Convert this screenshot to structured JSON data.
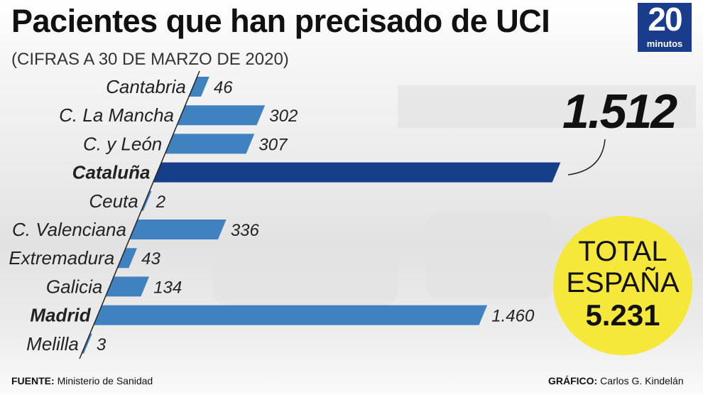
{
  "header": {
    "title": "Pacientes que han precisado de UCI",
    "subtitle": "(CIFRAS A 30 DE MARZO DE 2020)"
  },
  "logo": {
    "number": "20",
    "word": "minutos"
  },
  "highlight": {
    "value_text": "1.512"
  },
  "total": {
    "line1": "TOTAL",
    "line2": "ESPAÑA",
    "value_text": "5.231"
  },
  "footer": {
    "source_label": "FUENTE:",
    "source_text": "Ministerio de Sanidad",
    "credit_label": "GRÁFICO:",
    "credit_text": "Carlos G. Kindelán"
  },
  "colors": {
    "bar_default": "#3f82bf",
    "bar_highlight": "#163f8a",
    "total_circle": "#f5e83a",
    "logo_bg": "#1a3c8c"
  },
  "chart_data": {
    "type": "bar",
    "orientation": "horizontal",
    "title": "Pacientes que han precisado de UCI",
    "subtitle": "(CIFRAS A 30 DE MARZO DE 2020)",
    "categories": [
      "Cantabria",
      "C. La Mancha",
      "C. y León",
      "Cataluña",
      "Ceuta",
      "C. Valenciana",
      "Extremadura",
      "Galicia",
      "Madrid",
      "Melilla"
    ],
    "values": [
      46,
      302,
      307,
      1512,
      2,
      336,
      43,
      134,
      1460,
      3
    ],
    "value_labels": [
      "46",
      "302",
      "307",
      "",
      "2",
      "336",
      "43",
      "134",
      "1.460",
      "3"
    ],
    "emphasized": [
      "Cataluña",
      "Madrid"
    ],
    "highlighted": "Cataluña",
    "xlim": [
      0,
      1512
    ],
    "xlabel": "",
    "ylabel": ""
  }
}
